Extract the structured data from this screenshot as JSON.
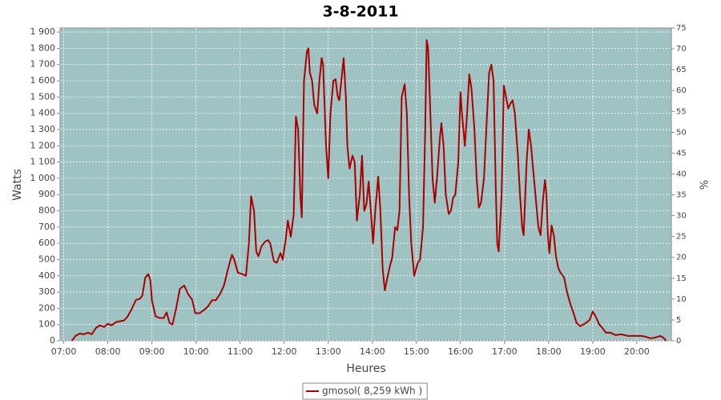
{
  "chart_data": {
    "type": "line",
    "title": "3-8-2011",
    "x_label": "Heures",
    "y_label": "Watts",
    "y2_label": "%",
    "x": [
      431,
      436,
      442,
      447,
      453,
      458,
      464,
      469,
      475,
      480,
      485,
      491,
      496,
      502,
      507,
      513,
      518,
      524,
      527,
      531,
      535,
      538,
      540,
      545,
      551,
      556,
      560,
      564,
      568,
      573,
      578,
      584,
      589,
      595,
      599,
      605,
      611,
      616,
      622,
      627,
      633,
      638,
      644,
      649,
      652,
      657,
      663,
      668,
      672,
      675,
      679,
      682,
      685,
      689,
      694,
      698,
      701,
      706,
      710,
      715,
      718,
      722,
      725,
      729,
      733,
      736,
      739,
      742,
      744,
      747,
      751,
      753,
      755,
      758,
      761,
      765,
      768,
      771,
      773,
      777,
      780,
      783,
      787,
      790,
      793,
      795,
      799,
      801,
      804,
      806,
      809,
      813,
      816,
      819,
      823,
      826,
      829,
      832,
      835,
      838,
      841,
      844,
      848,
      851,
      854,
      857,
      861,
      864,
      867,
      871,
      874,
      877,
      880,
      884,
      887,
      890,
      893,
      897,
      900,
      902,
      905,
      909,
      912,
      914,
      916,
      919,
      922,
      925,
      928,
      932,
      934,
      937,
      940,
      944,
      947,
      950,
      953,
      957,
      960,
      962,
      966,
      969,
      972,
      975,
      979,
      982,
      985,
      988,
      992,
      996,
      999,
      1002,
      1005,
      1008,
      1010,
      1012,
      1016,
      1019,
      1022,
      1025,
      1028,
      1031,
      1034,
      1038,
      1041,
      1044,
      1046,
      1050,
      1053,
      1056,
      1059,
      1063,
      1066,
      1069,
      1072,
      1075,
      1077,
      1079,
      1081,
      1084,
      1087,
      1090,
      1093,
      1096,
      1101,
      1105,
      1110,
      1114,
      1118,
      1123,
      1127,
      1131,
      1136,
      1140,
      1144,
      1149,
      1153,
      1158,
      1164,
      1171,
      1179,
      1188,
      1195,
      1206,
      1212,
      1219,
      1225,
      1232,
      1236,
      1240
    ],
    "series": [
      {
        "name": "gmosol( 8,259 kWh )",
        "color": "#aa0000",
        "values": [
          0,
          30,
          45,
          40,
          50,
          40,
          80,
          95,
          85,
          105,
          95,
          115,
          120,
          125,
          150,
          200,
          250,
          260,
          280,
          390,
          410,
          370,
          250,
          150,
          140,
          140,
          175,
          110,
          100,
          200,
          320,
          340,
          290,
          250,
          170,
          170,
          190,
          210,
          250,
          250,
          290,
          340,
          450,
          530,
          500,
          420,
          410,
          400,
          600,
          890,
          800,
          550,
          520,
          580,
          610,
          620,
          600,
          490,
          480,
          540,
          500,
          620,
          740,
          640,
          780,
          1380,
          1300,
          900,
          760,
          1600,
          1780,
          1800,
          1650,
          1600,
          1450,
          1400,
          1600,
          1740,
          1700,
          1200,
          1000,
          1400,
          1600,
          1610,
          1500,
          1480,
          1650,
          1740,
          1500,
          1200,
          1060,
          1140,
          1100,
          740,
          900,
          1140,
          800,
          840,
          980,
          800,
          600,
          800,
          1010,
          800,
          450,
          310,
          400,
          460,
          510,
          700,
          680,
          800,
          1500,
          1580,
          1400,
          900,
          600,
          400,
          450,
          480,
          500,
          700,
          1300,
          1850,
          1800,
          1400,
          1000,
          850,
          1000,
          1250,
          1340,
          1200,
          900,
          780,
          800,
          880,
          900,
          1100,
          1530,
          1400,
          1200,
          1400,
          1640,
          1550,
          1300,
          1000,
          820,
          850,
          1000,
          1380,
          1650,
          1700,
          1600,
          950,
          600,
          550,
          900,
          1570,
          1500,
          1430,
          1460,
          1480,
          1400,
          1150,
          900,
          700,
          650,
          1100,
          1300,
          1200,
          1050,
          850,
          700,
          650,
          850,
          990,
          900,
          650,
          540,
          710,
          650,
          520,
          450,
          420,
          390,
          300,
          220,
          170,
          110,
          90,
          100,
          110,
          130,
          180,
          150,
          100,
          80,
          50,
          50,
          35,
          40,
          30,
          30,
          30,
          25,
          15,
          20,
          30,
          20,
          0
        ]
      }
    ],
    "xlim": [
      415,
      1247
    ],
    "xticks": [
      {
        "value": 420,
        "label": "07:00"
      },
      {
        "value": 480,
        "label": "08:00"
      },
      {
        "value": 540,
        "label": "09:00"
      },
      {
        "value": 600,
        "label": "10:00"
      },
      {
        "value": 660,
        "label": "11:00"
      },
      {
        "value": 720,
        "label": "12:00"
      },
      {
        "value": 780,
        "label": "13:00"
      },
      {
        "value": 840,
        "label": "14:00"
      },
      {
        "value": 900,
        "label": "15:00"
      },
      {
        "value": 960,
        "label": "16:00"
      },
      {
        "value": 1020,
        "label": "17:00"
      },
      {
        "value": 1080,
        "label": "18:00"
      },
      {
        "value": 1140,
        "label": "19:00"
      },
      {
        "value": 1200,
        "label": "20:00"
      }
    ],
    "ylim": [
      0,
      1925
    ],
    "yticks": [
      0,
      100,
      200,
      300,
      400,
      500,
      600,
      700,
      800,
      900,
      {
        "value": 1000,
        "label": "1 000"
      },
      {
        "value": 1100,
        "label": "1 100"
      },
      {
        "value": 1200,
        "label": "1 200"
      },
      {
        "value": 1300,
        "label": "1 300"
      },
      {
        "value": 1400,
        "label": "1 400"
      },
      {
        "value": 1500,
        "label": "1 500"
      },
      {
        "value": 1600,
        "label": "1 600"
      },
      {
        "value": 1700,
        "label": "1 700"
      },
      {
        "value": 1800,
        "label": "1 800"
      },
      {
        "value": 1900,
        "label": "1 900"
      }
    ],
    "y2lim": [
      0,
      75
    ],
    "y2ticks": [
      0,
      5,
      10,
      15,
      20,
      25,
      30,
      35,
      40,
      45,
      50,
      55,
      60,
      65,
      70,
      75
    ],
    "grid": true,
    "legend": "bottom",
    "plot_background": "#9fc3c3"
  }
}
